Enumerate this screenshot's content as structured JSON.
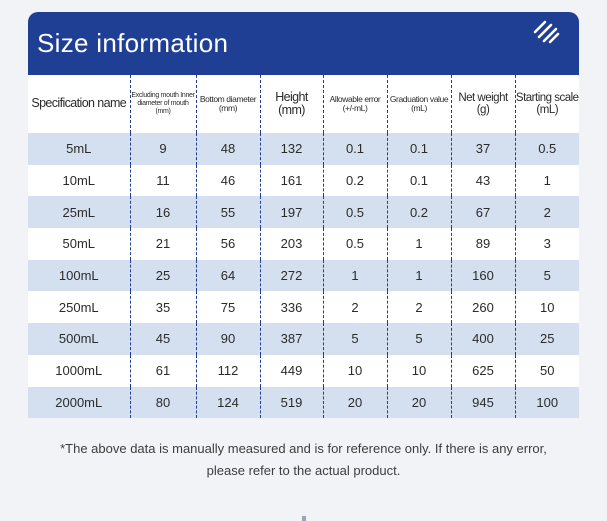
{
  "header": {
    "title": "Size information",
    "logo_icon": "diagonal-stripes-logo",
    "colors": {
      "header_bg": "#1f3f94",
      "stripe_row_bg": "#d4e0f0",
      "row_bg": "#ffffff"
    }
  },
  "table": {
    "columns": [
      {
        "label": "Specification name",
        "unit": ""
      },
      {
        "label": "Excluding mouth Inner diameter of mouth",
        "unit": "(mm)"
      },
      {
        "label": "Bottom diameter",
        "unit": "(mm)"
      },
      {
        "label": "Height",
        "unit": "(mm)"
      },
      {
        "label": "Allowable error",
        "unit": "(+/-mL)"
      },
      {
        "label": "Graduation value",
        "unit": "(mL)"
      },
      {
        "label": "Net weight",
        "unit": "(g)"
      },
      {
        "label": "Starting scale",
        "unit": "(mL)"
      }
    ],
    "rows": [
      [
        "5mL",
        "9",
        "48",
        "132",
        "0.1",
        "0.1",
        "37",
        "0.5"
      ],
      [
        "10mL",
        "11",
        "46",
        "161",
        "0.2",
        "0.1",
        "43",
        "1"
      ],
      [
        "25mL",
        "16",
        "55",
        "197",
        "0.5",
        "0.2",
        "67",
        "2"
      ],
      [
        "50mL",
        "21",
        "56",
        "203",
        "0.5",
        "1",
        "89",
        "3"
      ],
      [
        "100mL",
        "25",
        "64",
        "272",
        "1",
        "1",
        "160",
        "5"
      ],
      [
        "250mL",
        "35",
        "75",
        "336",
        "2",
        "2",
        "260",
        "10"
      ],
      [
        "500mL",
        "45",
        "90",
        "387",
        "5",
        "5",
        "400",
        "25"
      ],
      [
        "1000mL",
        "61",
        "112",
        "449",
        "10",
        "10",
        "625",
        "50"
      ],
      [
        "2000mL",
        "80",
        "124",
        "519",
        "20",
        "20",
        "945",
        "100"
      ]
    ]
  },
  "footnote": {
    "line1": "*The above data is manually measured and is for reference only. If there is any error,",
    "line2": "please refer to the actual product."
  }
}
